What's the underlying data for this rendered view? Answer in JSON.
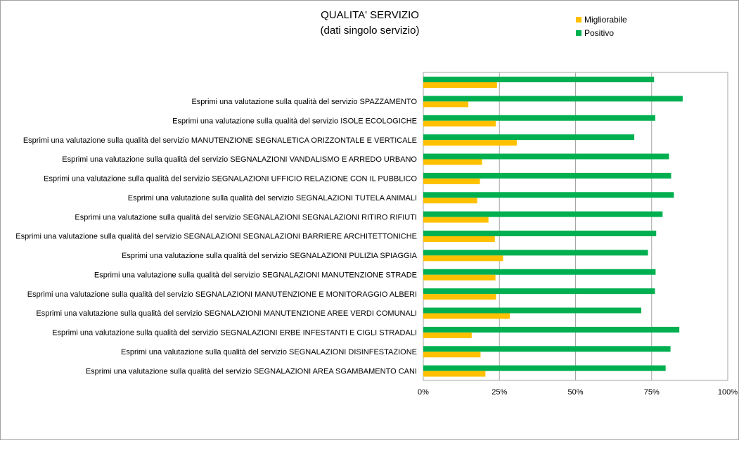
{
  "chart_data": {
    "type": "bar",
    "orientation": "horizontal",
    "title": "QUALITA' SERVIZIO",
    "subtitle": "(dati singolo servizio)",
    "xlabel": "",
    "ylabel": "",
    "xlim": [
      0,
      100
    ],
    "x_ticks": [
      "0%",
      "25%",
      "50%",
      "75%",
      "100%"
    ],
    "grid": true,
    "legend_position": "top-right",
    "categories": [
      "",
      "Esprimi una valutazione sulla qualità del servizio SPAZZAMENTO",
      "Esprimi una valutazione sulla qualità del servizio ISOLE ECOLOGICHE",
      "Esprimi una valutazione sulla qualità del servizio MANUTENZIONE SEGNALETICA ORIZZONTALE E VERTICALE",
      "Esprimi una valutazione sulla qualità del servizio SEGNALAZIONI VANDALISMO E ARREDO URBANO",
      "Esprimi una valutazione sulla qualità del servizio SEGNALAZIONI UFFICIO RELAZIONE CON IL PUBBLICO",
      "Esprimi una valutazione sulla qualità del servizio SEGNALAZIONI TUTELA ANIMALI",
      "Esprimi una valutazione sulla qualità del servizio SEGNALAZIONI SEGNALAZIONI RITIRO RIFIUTI",
      "Esprimi una valutazione sulla qualità del servizio SEGNALAZIONI SEGNALAZIONI BARRIERE ARCHITETTONICHE",
      "Esprimi una valutazione sulla qualità del servizio SEGNALAZIONI PULIZIA SPIAGGIA",
      "Esprimi una valutazione sulla qualità del servizio SEGNALAZIONI MANUTENZIONE STRADE",
      "Esprimi una valutazione sulla qualità del servizio SEGNALAZIONI MANUTENZIONE E MONITORAGGIO ALBERI",
      "Esprimi una valutazione sulla qualità del servizio SEGNALAZIONI MANUTENZIONE AREE VERDI COMUNALI",
      "Esprimi una valutazione sulla qualità del servizio SEGNALAZIONI ERBE INFESTANTI E CIGLI STRADALI",
      "Esprimi una valutazione sulla qualità del servizio SEGNALAZIONI DISINFESTAZIONE",
      "Esprimi una valutazione sulla qualità del servizio SEGNALAZIONI AREA SGAMBAMENTO CANI"
    ],
    "series": [
      {
        "name": "Positivo",
        "color": "#00b050",
        "values": [
          75.8,
          85.2,
          76.2,
          69.3,
          80.7,
          81.4,
          82.3,
          78.6,
          76.5,
          73.8,
          76.3,
          76.1,
          71.6,
          84.1,
          81.2,
          79.6
        ]
      },
      {
        "name": "Migliorabile",
        "color": "#ffc000",
        "values": [
          24.2,
          14.8,
          23.8,
          30.7,
          19.3,
          18.6,
          17.7,
          21.4,
          23.5,
          26.2,
          23.7,
          23.9,
          28.4,
          15.9,
          18.8,
          20.4
        ]
      }
    ]
  }
}
